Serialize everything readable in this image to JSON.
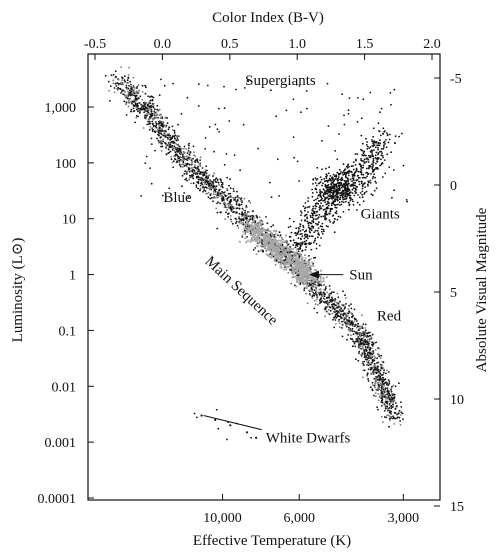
{
  "chart_data": {
    "type": "scatter",
    "title": "",
    "xlabel": "Effective Temperature (K)",
    "ylabel": "Luminosity (L⊙)",
    "top_xlabel": "Color Index (B-V)",
    "right_ylabel": "Absolute Visual Magnitude",
    "x_scale": "log",
    "x_reversed": true,
    "y_scale": "log",
    "xlim": [
      25000,
      2500
    ],
    "ylim": [
      0.0001,
      10000
    ],
    "x_ticks": [
      {
        "value": 10000,
        "label": "10,000"
      },
      {
        "value": 6000,
        "label": "6,000"
      },
      {
        "value": 3000,
        "label": "3,000"
      }
    ],
    "y_ticks": [
      {
        "value": 1000,
        "label": "1,000"
      },
      {
        "value": 100,
        "label": "100"
      },
      {
        "value": 10,
        "label": "10"
      },
      {
        "value": 1,
        "label": "1"
      },
      {
        "value": 0.1,
        "label": "0.1"
      },
      {
        "value": 0.01,
        "label": "0.01"
      },
      {
        "value": 0.001,
        "label": "0.001"
      },
      {
        "value": 0.0001,
        "label": "0.0001"
      }
    ],
    "top_ticks": [
      {
        "value": -0.5,
        "label": "-0.5"
      },
      {
        "value": 0.0,
        "label": "0.0"
      },
      {
        "value": 0.5,
        "label": "0.5"
      },
      {
        "value": 1.0,
        "label": "1.0"
      },
      {
        "value": 1.5,
        "label": "1.5"
      },
      {
        "value": 2.0,
        "label": "2.0"
      }
    ],
    "right_ticks": [
      {
        "value": -5,
        "label": "-5"
      },
      {
        "value": 0,
        "label": "0"
      },
      {
        "value": 5,
        "label": "5"
      },
      {
        "value": 10,
        "label": "10"
      },
      {
        "value": 15,
        "label": "15"
      }
    ],
    "regions": [
      {
        "text": "Supergiants",
        "x": 6800,
        "y": 2500
      },
      {
        "text": "Blue",
        "x": 13500,
        "y": 20
      },
      {
        "text": "Giants",
        "x": 3500,
        "y": 10
      },
      {
        "text": "Red",
        "x": 3300,
        "y": 0.15
      },
      {
        "text": "Main Sequence",
        "x": 9000,
        "y": 0.45,
        "angle": 43
      }
    ],
    "annotations": [
      {
        "text": "Sun",
        "x": 4300,
        "y": 1.0,
        "point_x": 5778,
        "point_y": 1.0
      },
      {
        "text": "White Dwarfs",
        "x": 7500,
        "y": 0.0012,
        "point_x": 11500,
        "point_y": 0.003
      }
    ],
    "series": [
      {
        "role": "main-sequence",
        "x": [
          20000,
          16000,
          13000,
          11000,
          10000,
          9000,
          8000,
          7000,
          6500,
          6000,
          5778,
          5500,
          5000,
          4500,
          4200,
          4000,
          3800,
          3600,
          3400,
          3200
        ],
        "y": [
          3000,
          700,
          120,
          40,
          25,
          14,
          6,
          3,
          2,
          1.4,
          1.0,
          0.7,
          0.35,
          0.18,
          0.12,
          0.08,
          0.04,
          0.02,
          0.008,
          0.003
        ]
      },
      {
        "role": "giant-branch",
        "x": [
          6200,
          5500,
          5000,
          4800,
          4600,
          4400,
          4200,
          4000,
          3800,
          3600,
          3400
        ],
        "y": [
          3,
          8,
          18,
          30,
          35,
          30,
          40,
          60,
          100,
          150,
          250
        ]
      },
      {
        "role": "white-dwarfs",
        "x": [
          11500,
          10500,
          9500,
          8500,
          8000
        ],
        "y": [
          0.003,
          0.0025,
          0.002,
          0.0015,
          0.0012
        ]
      }
    ]
  }
}
